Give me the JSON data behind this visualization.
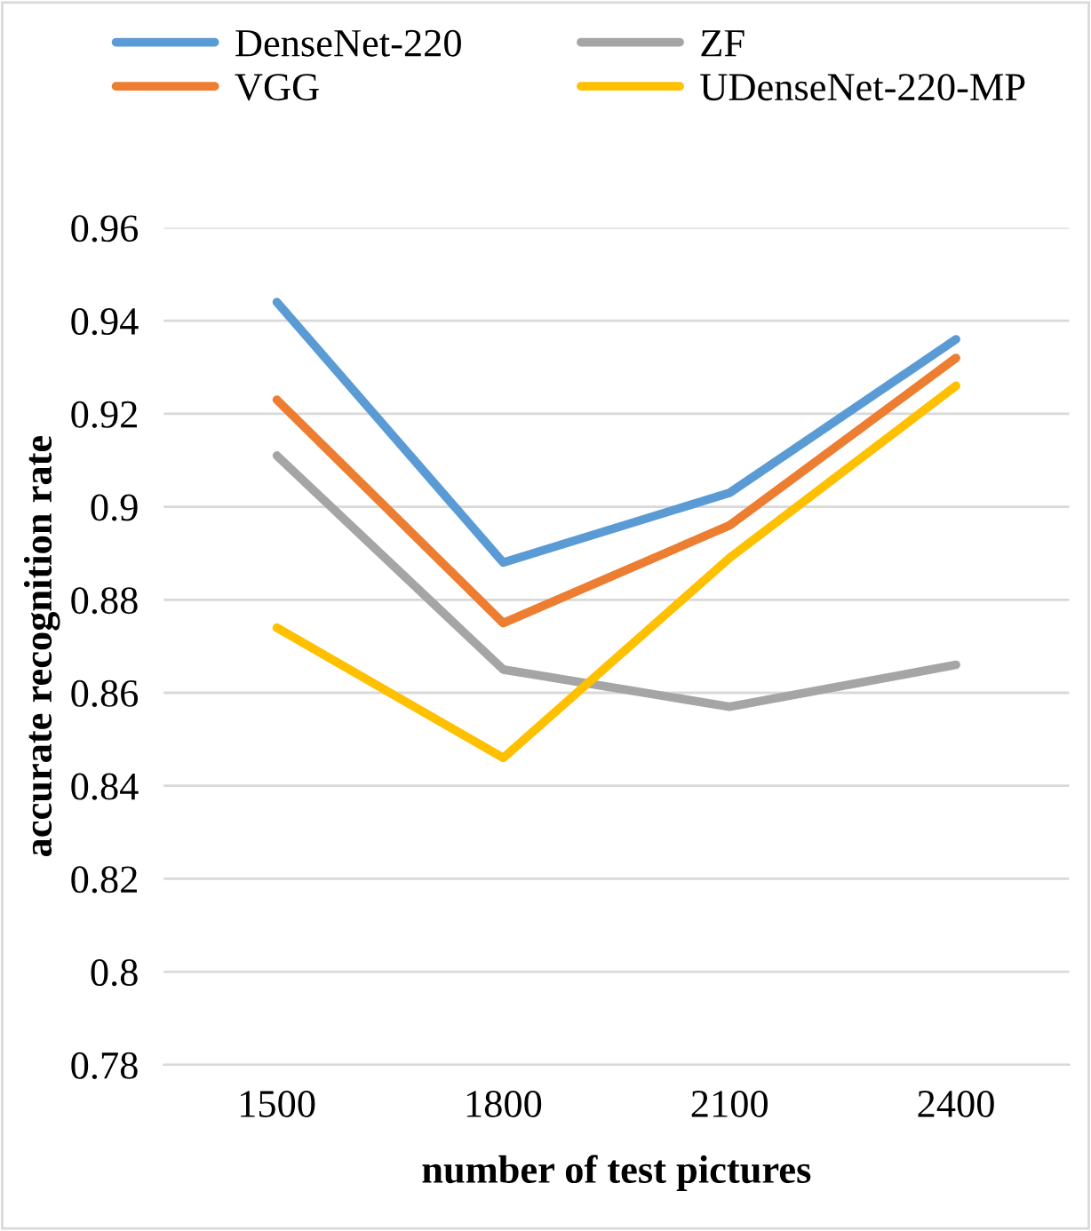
{
  "chart_data": {
    "type": "line",
    "xlabel": "number of test pictures",
    "ylabel": "accurate recognition rate",
    "categories": [
      "1500",
      "1800",
      "2100",
      "2400"
    ],
    "series": [
      {
        "name": "DenseNet-220",
        "color": "#5b9bd5",
        "values": [
          0.944,
          0.888,
          0.903,
          0.936
        ]
      },
      {
        "name": "VGG",
        "color": "#ed7d31",
        "values": [
          0.923,
          0.875,
          0.896,
          0.932
        ]
      },
      {
        "name": "ZF",
        "color": "#a5a5a5",
        "values": [
          0.911,
          0.865,
          0.857,
          0.866
        ]
      },
      {
        "name": "UDenseNet-220-MP",
        "color": "#ffc000",
        "values": [
          0.874,
          0.846,
          0.889,
          0.926
        ]
      }
    ],
    "ylim": [
      0.78,
      0.96
    ],
    "yticks": [
      {
        "value": 0.78,
        "label": "0.78"
      },
      {
        "value": 0.8,
        "label": "0.8"
      },
      {
        "value": 0.82,
        "label": "0.82"
      },
      {
        "value": 0.84,
        "label": "0.84"
      },
      {
        "value": 0.86,
        "label": "0.86"
      },
      {
        "value": 0.88,
        "label": "0.88"
      },
      {
        "value": 0.9,
        "label": "0.9"
      },
      {
        "value": 0.92,
        "label": "0.92"
      },
      {
        "value": 0.94,
        "label": "0.94"
      },
      {
        "value": 0.96,
        "label": "0.96"
      }
    ],
    "grid": "y",
    "legend": "top",
    "marker": "none",
    "line_style": "solid"
  }
}
